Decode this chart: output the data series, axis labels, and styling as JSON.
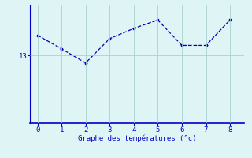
{
  "x": [
    0,
    1,
    2,
    3,
    4,
    5,
    6,
    7,
    8
  ],
  "y": [
    13.6,
    13.2,
    12.78,
    13.5,
    13.8,
    14.05,
    13.3,
    13.3,
    14.05
  ],
  "line_color": "#0000bb",
  "bg_color": "#dff4f4",
  "xlabel": "Graphe des températures (°c)",
  "xlabel_color": "#0000cc",
  "tick_color": "#0000cc",
  "axis_color": "#0000cc",
  "grid_color": "#aacfcf",
  "ytick_labels": [
    "13"
  ],
  "ytick_values": [
    13
  ],
  "xlim": [
    -0.3,
    8.6
  ],
  "ylim": [
    11.0,
    14.5
  ],
  "figsize": [
    3.2,
    2.0
  ],
  "dpi": 100
}
